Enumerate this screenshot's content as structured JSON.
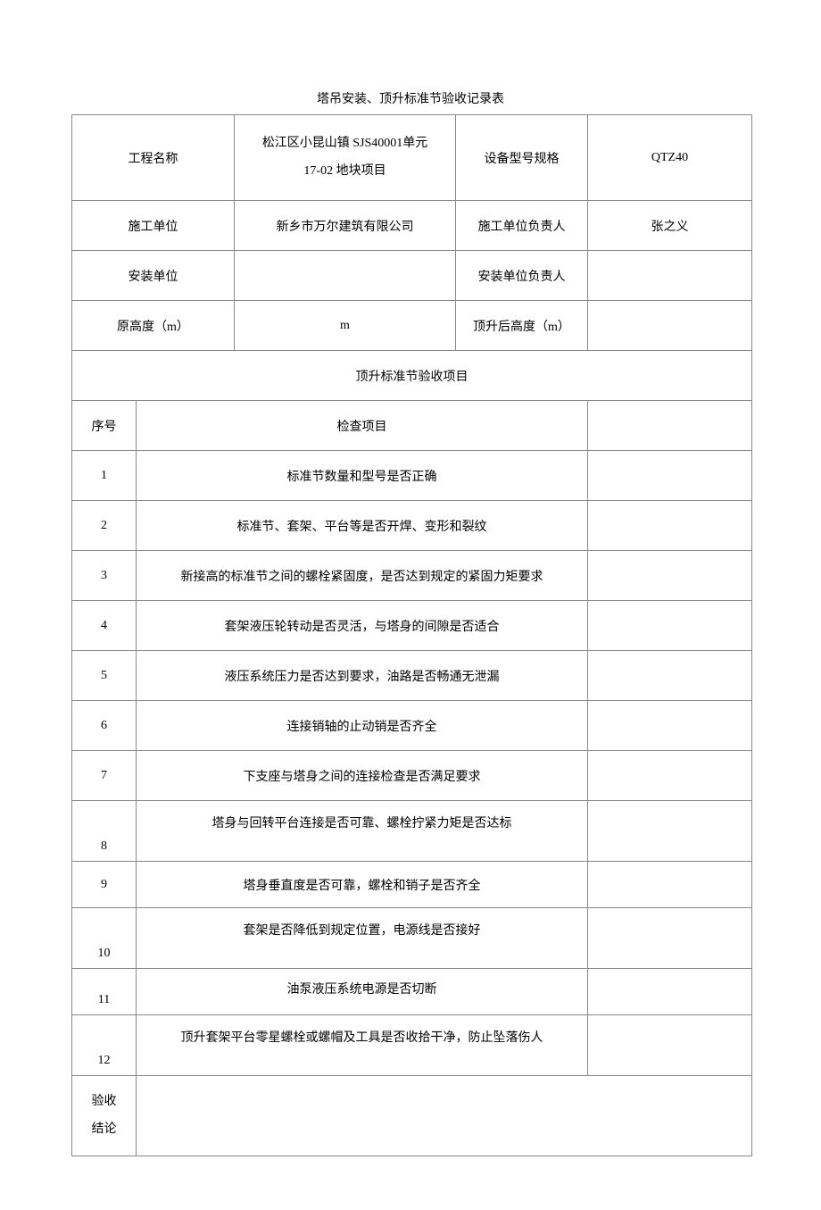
{
  "title": "塔吊安装、顶升标准节验收记录表",
  "header": {
    "projectNameLabel": "工程名称",
    "projectNameValue": "松江区小昆山镇 SJS40001单元\n17-02 地块项目",
    "equipModelLabel": "设备型号规格",
    "equipModelValue": "QTZ40",
    "constructionUnitLabel": "施工单位",
    "constructionUnitValue": "新乡市万尔建筑有限公司",
    "constructionLeaderLabel": "施工单位负责人",
    "constructionLeaderValue": "张之义",
    "installUnitLabel": "安装单位",
    "installUnitValue": "",
    "installLeaderLabel": "安装单位负责人",
    "installLeaderValue": "",
    "origHeightLabel": "原高度（m）",
    "origHeightValue": "m",
    "afterHeightLabel": "顶升后高度（m）",
    "afterHeightValue": ""
  },
  "sectionTitle": "顶升标准节验收项目",
  "tableHeader": {
    "col1": "序号",
    "col2": "检查项目"
  },
  "items": [
    {
      "num": "1",
      "text": "标准节数量和型号是否正确"
    },
    {
      "num": "2",
      "text": "标准节、套架、平台等是否开焊、变形和裂纹"
    },
    {
      "num": "3",
      "text": "新接高的标准节之间的螺栓紧固度，是否达到规定的紧固力矩要求"
    },
    {
      "num": "4",
      "text": "套架液压轮转动是否灵活，与塔身的间隙是否适合"
    },
    {
      "num": "5",
      "text": "液压系统压力是否达到要求，油路是否畅通无泄漏"
    },
    {
      "num": "6",
      "text": "连接销轴的止动销是否齐全"
    },
    {
      "num": "7",
      "text": "下支座与塔身之间的连接检查是否满足要求"
    },
    {
      "num": "8",
      "text": "塔身与回转平台连接是否可靠、螺栓拧紧力矩是否达标"
    },
    {
      "num": "9",
      "text": "塔身垂直度是否可靠，螺栓和销子是否齐全"
    },
    {
      "num": "10",
      "text": "套架是否降低到规定位置，电源线是否接好"
    },
    {
      "num": "11",
      "text": "油泵液压系统电源是否切断"
    },
    {
      "num": "12",
      "text": "顶升套架平台零星螺栓或螺帽及工具是否收拾干净，防止坠落伤人"
    }
  ],
  "conclusion": {
    "line1": "验收",
    "line2": "结论"
  },
  "style": {
    "backgroundColor": "#ffffff",
    "borderColor": "#888888",
    "dashedBorderColor": "#aaaaaa",
    "textColor": "#000000",
    "fontSize": 14,
    "titleFontSize": 14,
    "pageWidth": 920,
    "pageHeight": 1303,
    "col1Width": 72,
    "col2Width": 110,
    "col3Width": 248,
    "col4Width": 148,
    "col5Width": 184
  }
}
